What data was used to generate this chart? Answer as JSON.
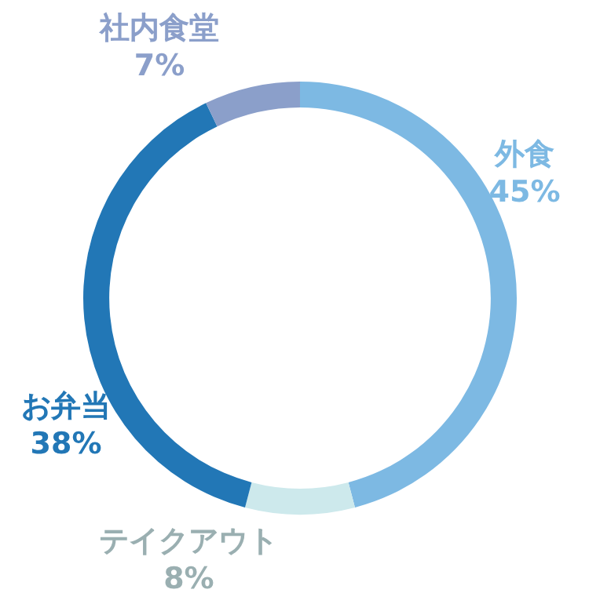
{
  "chart_data": {
    "type": "donut",
    "categories": [
      "外食",
      "テイクアウト",
      "お弁当",
      "社内食堂"
    ],
    "values": [
      45,
      8,
      38,
      7
    ],
    "colors": [
      "#7db9e3",
      "#cde9ec",
      "#2277b6",
      "#8b9fca"
    ],
    "value_labels": [
      "45%",
      "8%",
      "38%",
      "7%"
    ]
  }
}
